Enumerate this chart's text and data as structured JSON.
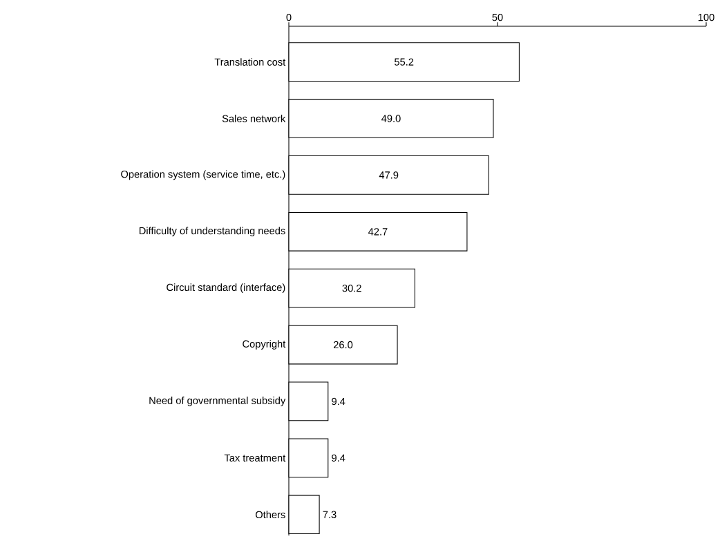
{
  "chart_data": {
    "type": "bar",
    "orientation": "horizontal",
    "categories": [
      "Translation cost",
      "Sales network",
      "Operation system (service time, etc.)",
      "Difficulty of understanding needs",
      "Circuit standard (interface)",
      "Copyright",
      "Need of governmental subsidy",
      "Tax treatment",
      "Others"
    ],
    "values": [
      55.2,
      49.0,
      47.9,
      42.7,
      30.2,
      26.0,
      9.4,
      9.4,
      7.3
    ],
    "value_labels": [
      "55.2",
      "49.0",
      "47.9",
      "42.7",
      "30.2",
      "26.0",
      "9.4",
      "9.4",
      "7.3"
    ],
    "color": "#ffffff",
    "xlim": [
      0,
      100
    ],
    "xticks": [
      0,
      50,
      100
    ],
    "grid": false
  }
}
